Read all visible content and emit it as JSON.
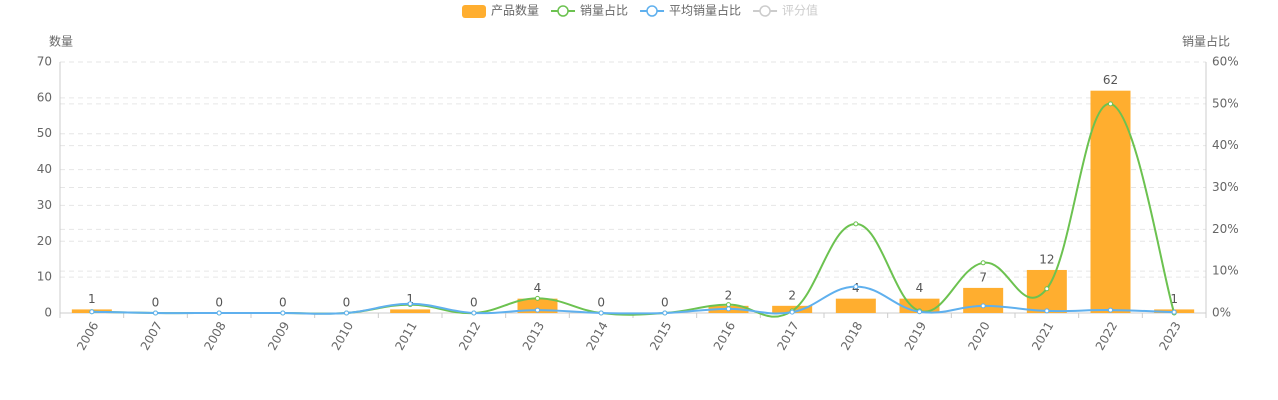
{
  "chart_data": {
    "type": "bar-line",
    "yname": "数量",
    "y2name": "销量占比",
    "categories": [
      "2006",
      "2007",
      "2008",
      "2009",
      "2010",
      "2011",
      "2012",
      "2013",
      "2014",
      "2015",
      "2016",
      "2017",
      "2018",
      "2019",
      "2020",
      "2021",
      "2022",
      "2023"
    ],
    "ylim": [
      0,
      70
    ],
    "yticks": [
      0,
      10,
      20,
      30,
      40,
      50,
      60,
      70
    ],
    "y2lim": [
      0,
      60
    ],
    "y2ticks": [
      {
        "value": 0,
        "label": "0%"
      },
      {
        "value": 10,
        "label": "10%"
      },
      {
        "value": 20,
        "label": "20%"
      },
      {
        "value": 30,
        "label": "30%"
      },
      {
        "value": 40,
        "label": "40%"
      },
      {
        "value": 50,
        "label": "50%"
      },
      {
        "value": 60,
        "label": "60%"
      }
    ],
    "grid": true,
    "series": [
      {
        "name": "产品数量",
        "type": "bar",
        "color": "#ffae2f",
        "values": [
          1,
          0,
          0,
          0,
          0,
          1,
          0,
          4,
          0,
          0,
          2,
          2,
          4,
          4,
          7,
          12,
          62,
          1
        ]
      },
      {
        "name": "销量占比",
        "type": "line",
        "axis": "y2",
        "color": "#6cc250",
        "values": [
          0.3,
          0,
          0,
          0,
          0,
          2,
          0,
          3.5,
          0,
          0,
          2,
          0.5,
          21.3,
          0.5,
          12,
          5.8,
          50,
          0
        ]
      },
      {
        "name": "平均销量占比",
        "type": "line",
        "axis": "y2",
        "color": "#5fb0ee",
        "values": [
          0.3,
          0,
          0,
          0,
          0,
          2.2,
          0,
          0.7,
          0,
          0,
          1,
          0.2,
          6.3,
          0.3,
          1.7,
          0.5,
          0.7,
          0.2
        ]
      },
      {
        "name": "评分值",
        "type": "line",
        "axis": "y2",
        "color": "#cccccc",
        "values": [
          null,
          null,
          null,
          null,
          null,
          null,
          null,
          null,
          null,
          null,
          null,
          null,
          null,
          null,
          null,
          null,
          null,
          null
        ]
      }
    ]
  }
}
